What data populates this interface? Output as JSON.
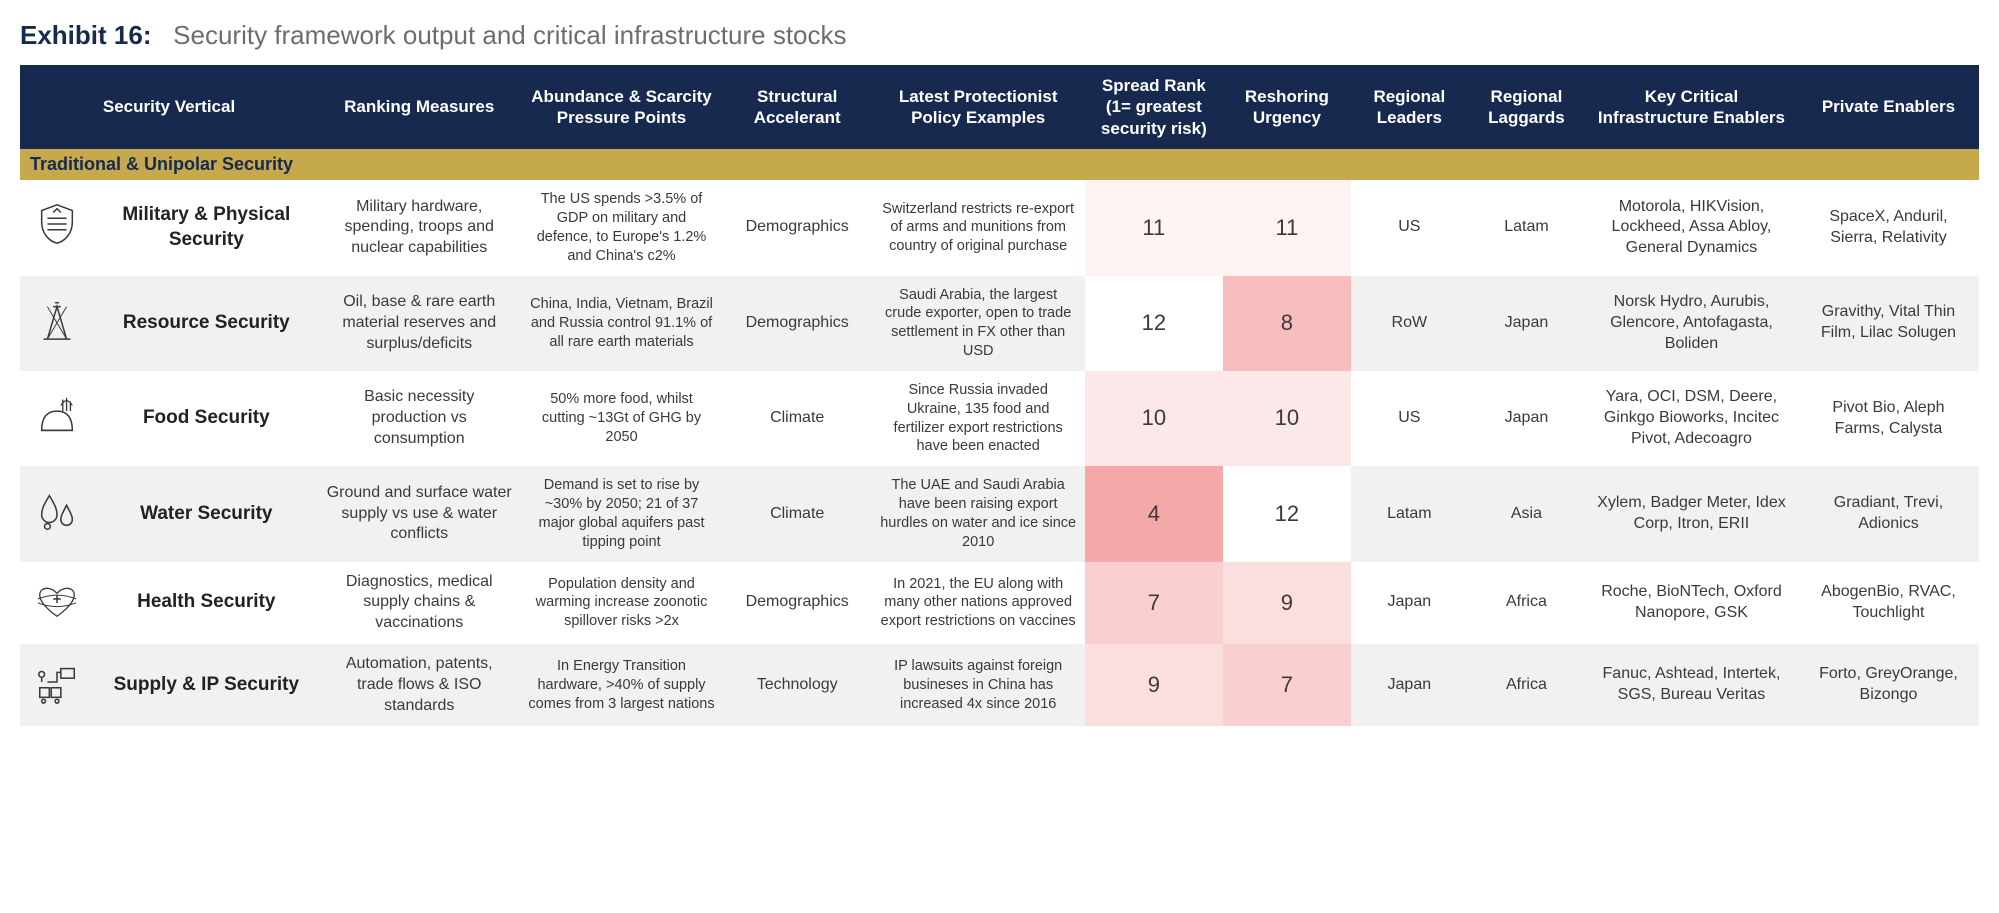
{
  "exhibit": {
    "label_prefix": "Exhibit 16:",
    "title": "Security framework output and critical infrastructure stocks"
  },
  "table": {
    "type": "table",
    "header_bg": "#17294f",
    "header_fg": "#ffffff",
    "section_bg": "#c6a84d",
    "row_bg_even": "#ffffff",
    "row_bg_odd": "#f1f1f1",
    "heat_scale": {
      "low_color": "#fdf3f3",
      "mid_color": "#fad4d4",
      "high_color": "#f4a8a8",
      "note": "lower rank number = higher intensity (redder)"
    },
    "columns": [
      "Security Vertical",
      "Ranking Measures",
      "Abundance & Scarcity Pressure Points",
      "Structural Accelerant",
      "Latest Protectionist Policy Examples",
      "Spread Rank (1= greatest security risk)",
      "Reshoring Urgency",
      "Regional Leaders",
      "Regional Laggards",
      "Key Critical Infrastructure Enablers",
      "Private Enablers"
    ],
    "section_label": "Traditional & Unipolar Security",
    "rows": [
      {
        "icon": "military",
        "vertical": "Military & Physical Security",
        "ranking": "Military hardware, spending, troops and nuclear capabilities",
        "abundance": "The US spends >3.5% of GDP on military and defence, to Europe's 1.2% and China's c2%",
        "accelerant": "Demographics",
        "policy": "Switzerland restricts re-export of arms and munitions from country of original purchase",
        "spread_rank": 11,
        "reshoring": 11,
        "leaders": "US",
        "laggards": "Latam",
        "key_enablers": "Motorola, HIKVision, Lockheed, Assa Abloy, General Dynamics",
        "private_enablers": "SpaceX, Anduril, Sierra, Relativity",
        "spread_heat": "#fdf3f3",
        "reshoring_heat": "#fdf3f3"
      },
      {
        "icon": "resource",
        "vertical": "Resource Security",
        "ranking": "Oil, base & rare earth material reserves and surplus/deficits",
        "abundance": "China, India, Vietnam, Brazil and Russia control 91.1% of all rare earth materials",
        "accelerant": "Demographics",
        "policy": "Saudi Arabia, the largest crude exporter, open to trade settlement in FX other than USD",
        "spread_rank": 12,
        "reshoring": 8,
        "leaders": "RoW",
        "laggards": "Japan",
        "key_enablers": "Norsk Hydro, Aurubis, Glencore, Antofagasta, Boliden",
        "private_enablers": "Gravithy, Vital Thin Film, Lilac Solugen",
        "spread_heat": "#ffffff",
        "reshoring_heat": "#f7bdbd"
      },
      {
        "icon": "food",
        "vertical": "Food Security",
        "ranking": "Basic necessity production vs consumption",
        "abundance": "50% more food, whilst cutting ~13Gt of GHG by 2050",
        "accelerant": "Climate",
        "policy": "Since Russia invaded Ukraine, 135 food and fertilizer export restrictions have been enacted",
        "spread_rank": 10,
        "reshoring": 10,
        "leaders": "US",
        "laggards": "Japan",
        "key_enablers": "Yara, OCI, DSM, Deere, Ginkgo Bioworks, Incitec Pivot, Adecoagro",
        "private_enablers": "Pivot Bio, Aleph Farms, Calysta",
        "spread_heat": "#fce8e8",
        "reshoring_heat": "#fce8e8"
      },
      {
        "icon": "water",
        "vertical": "Water Security",
        "ranking": "Ground and surface water supply vs use & water conflicts",
        "abundance": "Demand is set to rise by ~30% by 2050; 21 of 37 major global aquifers past tipping point",
        "accelerant": "Climate",
        "policy": "The UAE and Saudi Arabia have been raising export hurdles on water and ice since 2010",
        "spread_rank": 4,
        "reshoring": 12,
        "leaders": "Latam",
        "laggards": "Asia",
        "key_enablers": "Xylem, Badger Meter, Idex Corp, Itron, ERII",
        "private_enablers": "Gradiant, Trevi, Adionics",
        "spread_heat": "#f4a8a8",
        "reshoring_heat": "#ffffff"
      },
      {
        "icon": "health",
        "vertical": "Health Security",
        "ranking": "Diagnostics, medical supply chains & vaccinations",
        "abundance": "Population density and warming increase zoonotic spillover risks >2x",
        "accelerant": "Demographics",
        "policy": "In 2021, the EU along with many other nations approved export restrictions on vaccines",
        "spread_rank": 7,
        "reshoring": 9,
        "leaders": "Japan",
        "laggards": "Africa",
        "key_enablers": "Roche, BioNTech, Oxford Nanopore, GSK",
        "private_enablers": "AbogenBio, RVAC, Touchlight",
        "spread_heat": "#f9cfcf",
        "reshoring_heat": "#fbdede"
      },
      {
        "icon": "supply",
        "vertical": "Supply & IP Security",
        "ranking": "Automation, patents, trade flows & ISO standards",
        "abundance": "In Energy Transition hardware, >40% of supply comes from 3 largest nations",
        "accelerant": "Technology",
        "policy": "IP lawsuits against foreign busineses in China has increased 4x since 2016",
        "spread_rank": 9,
        "reshoring": 7,
        "leaders": "Japan",
        "laggards": "Africa",
        "key_enablers": "Fanuc, Ashtead, Intertek, SGS, Bureau Veritas",
        "private_enablers": "Forto, GreyOrange, Bizongo",
        "spread_heat": "#fbdede",
        "reshoring_heat": "#f9cfcf"
      }
    ]
  }
}
